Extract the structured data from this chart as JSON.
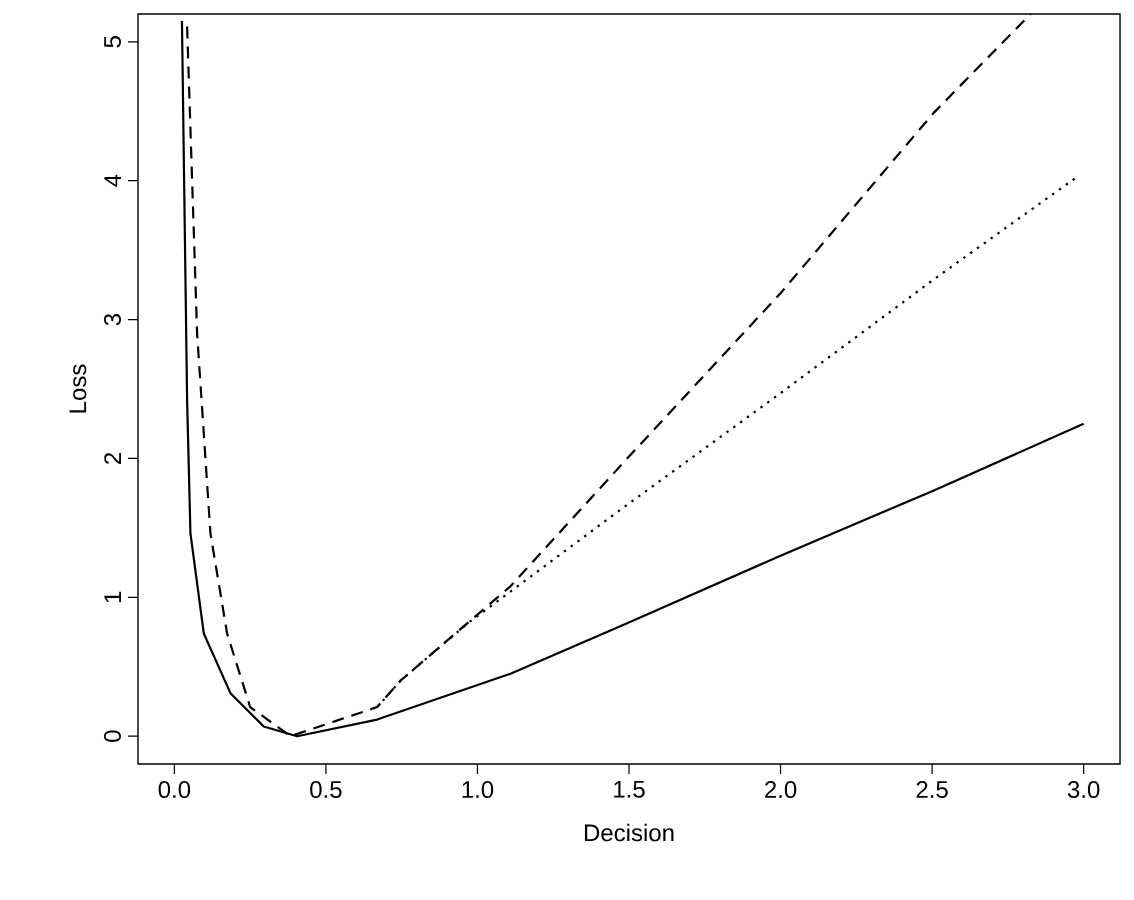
{
  "chart_data": {
    "type": "line",
    "xlabel": "Decision",
    "ylabel": "Loss",
    "xlim": [
      -0.12,
      3.12
    ],
    "ylim": [
      -0.2,
      5.2
    ],
    "xticks": [
      {
        "value": 0,
        "label": "0.0"
      },
      {
        "value": 0.5,
        "label": "0.5"
      },
      {
        "value": 1,
        "label": "1.0"
      },
      {
        "value": 1.5,
        "label": "1.5"
      },
      {
        "value": 2,
        "label": "2.0"
      },
      {
        "value": 2.5,
        "label": "2.5"
      },
      {
        "value": 3,
        "label": "3.0"
      }
    ],
    "yticks": [
      0,
      1,
      2,
      3,
      4,
      5
    ],
    "grid": false,
    "marker": "none",
    "series": [
      {
        "color": "#000000",
        "line_style": "solid",
        "x": [
          0.025,
          0.042,
          0.053,
          0.097,
          0.185,
          0.295,
          0.405,
          0.669,
          1.109,
          1.49,
          2.0,
          2.506,
          3.0
        ],
        "values": [
          5.15,
          2.42,
          1.46,
          0.74,
          0.31,
          0.07,
          0,
          0.12,
          0.45,
          0.81,
          1.3,
          1.77,
          2.25
        ]
      },
      {
        "color": "#000000",
        "line_style": "dashed",
        "x": [
          0.042,
          0.075,
          0.119,
          0.174,
          0.25,
          0.383,
          0.669,
          0.746,
          1.109,
          1.49,
          2.0,
          2.506,
          2.825
        ],
        "values": [
          5.11,
          2.9,
          1.46,
          0.74,
          0.21,
          0,
          0.21,
          0.4,
          1.08,
          1.99,
          3.19,
          4.49,
          5.2
        ]
      },
      {
        "color": "#000000",
        "line_style": "dotted",
        "x": [
          0.669,
          0.746,
          0.966,
          1.49,
          2.0,
          2.506,
          2.98
        ],
        "values": [
          0.21,
          0.4,
          0.81,
          1.66,
          2.47,
          3.29,
          4.03
        ]
      }
    ]
  }
}
